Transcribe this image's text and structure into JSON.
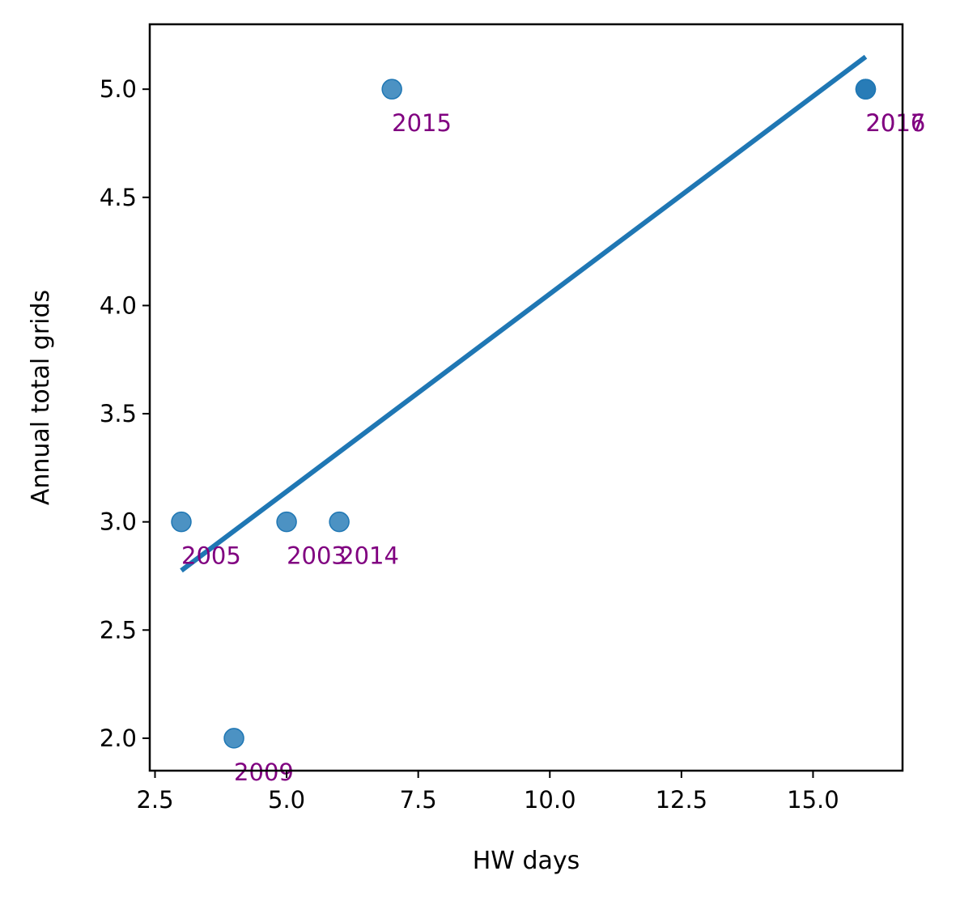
{
  "chart_data": {
    "type": "scatter",
    "xlabel": "HW days",
    "ylabel": "Annual total grids",
    "xlim": [
      2.4,
      16.7
    ],
    "ylim": [
      1.85,
      5.3
    ],
    "xticks": [
      {
        "value": 2.5,
        "label": "2.5"
      },
      {
        "value": 5.0,
        "label": "5.0"
      },
      {
        "value": 7.5,
        "label": "7.5"
      },
      {
        "value": 10.0,
        "label": "10.0"
      },
      {
        "value": 12.5,
        "label": "12.5"
      },
      {
        "value": 15.0,
        "label": "15.0"
      }
    ],
    "yticks": [
      {
        "value": 2.0,
        "label": "2.0"
      },
      {
        "value": 2.5,
        "label": "2.5"
      },
      {
        "value": 3.0,
        "label": "3.0"
      },
      {
        "value": 3.5,
        "label": "3.5"
      },
      {
        "value": 4.0,
        "label": "4.0"
      },
      {
        "value": 4.5,
        "label": "4.5"
      },
      {
        "value": 5.0,
        "label": "5.0"
      }
    ],
    "points": [
      {
        "x": 3,
        "y": 3,
        "label": "2005"
      },
      {
        "x": 4,
        "y": 2,
        "label": "2009"
      },
      {
        "x": 5,
        "y": 3,
        "label": "2003"
      },
      {
        "x": 6,
        "y": 3,
        "label": "2014"
      },
      {
        "x": 7,
        "y": 5,
        "label": "2015"
      },
      {
        "x": 16,
        "y": 5,
        "label": "2016"
      },
      {
        "x": 16,
        "y": 5,
        "label": "2017"
      }
    ],
    "fit_line": {
      "x": [
        3,
        16
      ],
      "y": [
        2.775,
        5.15
      ]
    },
    "colors": {
      "point": "#1f77b4",
      "line": "#1f77b4",
      "label": "#800080"
    },
    "grid": false
  }
}
